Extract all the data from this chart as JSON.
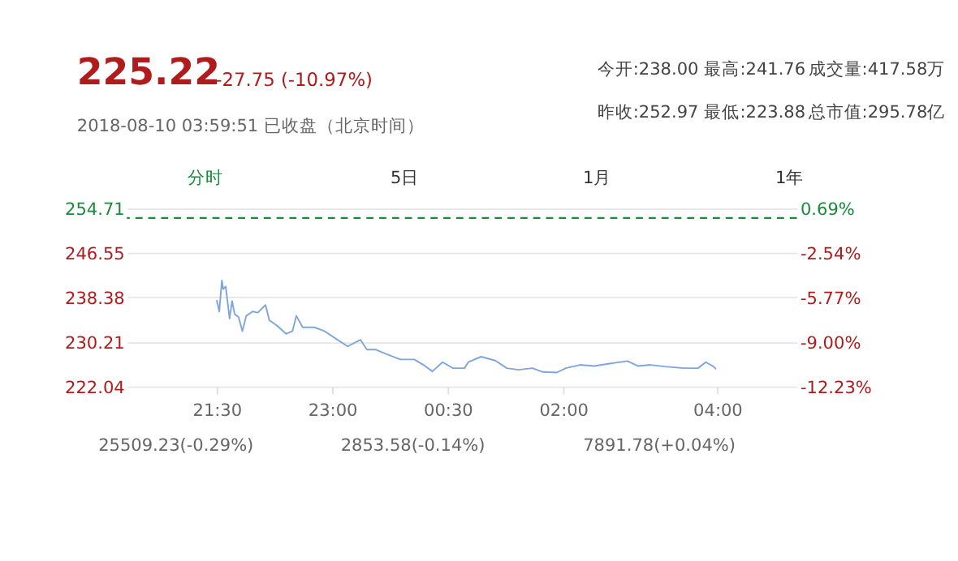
{
  "chart_data": {
    "type": "line",
    "title": "225.22",
    "subtitle": "-27.75 (-10.97%)",
    "annotations": [
      "2018-08-10 03:59:51 已收盘（北京时间）",
      "今开:238.00",
      "最高:241.76",
      "成交量:417.58万",
      "昨收:252.97",
      "最低:223.88",
      "总市值:295.78亿",
      "分时",
      "5日",
      "1月",
      "1年",
      "25509.23(-0.29%)",
      "2853.58(-0.14%)",
      "7891.78(+0.04%)"
    ],
    "x": [
      "2018-08-09T21:30",
      "2018-08-09T21:32",
      "2018-08-09T21:34",
      "2018-08-09T21:35",
      "2018-08-09T21:37",
      "2018-08-09T21:40",
      "2018-08-09T21:42",
      "2018-08-09T21:44",
      "2018-08-09T21:47",
      "2018-08-09T21:50",
      "2018-08-09T21:53",
      "2018-08-09T21:58",
      "2018-08-09T22:02",
      "2018-08-09T22:08",
      "2018-08-09T22:11",
      "2018-08-09T22:17",
      "2018-08-09T22:24",
      "2018-08-09T22:29",
      "2018-08-09T22:32",
      "2018-08-09T22:37",
      "2018-08-09T22:46",
      "2018-08-09T22:54",
      "2018-08-09T23:01",
      "2018-08-09T23:12",
      "2018-08-09T23:22",
      "2018-08-09T23:27",
      "2018-08-09T23:34",
      "2018-08-09T23:42",
      "2018-08-09T23:53",
      "2018-08-10T00:04",
      "2018-08-10T00:11",
      "2018-08-10T00:18",
      "2018-08-10T00:26",
      "2018-08-10T00:34",
      "2018-08-10T00:43",
      "2018-08-10T00:46",
      "2018-08-10T00:56",
      "2018-08-10T01:07",
      "2018-08-10T01:16",
      "2018-08-10T01:25",
      "2018-08-10T01:36",
      "2018-08-10T01:44",
      "2018-08-10T01:55",
      "2018-08-10T02:02",
      "2018-08-10T02:13",
      "2018-08-10T02:24",
      "2018-08-10T02:35",
      "2018-08-10T02:50",
      "2018-08-10T02:58",
      "2018-08-10T03:08",
      "2018-08-10T03:19",
      "2018-08-10T03:34",
      "2018-08-10T03:45",
      "2018-08-10T03:51",
      "2018-08-10T03:57",
      "2018-08-10T03:59"
    ],
    "series": [
      {
        "color": "#7fa6dc",
        "values": [
          237.9,
          235.8,
          241.5,
          239.9,
          240.4,
          234.5,
          237.7,
          235.3,
          234.8,
          232.2,
          235.0,
          235.8,
          235.6,
          237.0,
          234.2,
          233.2,
          231.7,
          232.2,
          235.0,
          232.9,
          232.9,
          232.2,
          231.1,
          229.4,
          230.6,
          228.8,
          228.8,
          228.0,
          227.0,
          227.0,
          226.0,
          224.8,
          226.5,
          225.4,
          225.4,
          226.5,
          227.5,
          226.8,
          225.4,
          225.1,
          225.4,
          224.7,
          224.6,
          225.4,
          226.0,
          225.8,
          226.2,
          226.7,
          225.8,
          226.0,
          225.7,
          225.4,
          225.4,
          226.5,
          225.7,
          225.2
        ]
      }
    ],
    "xlim": [
      "2018-08-09T20:20",
      "2018-08-10T05:02"
    ],
    "xticks": [
      {
        "value": "2018-08-09T21:30",
        "label": "21:30"
      },
      {
        "value": "2018-08-09T23:00",
        "label": "23:00"
      },
      {
        "value": "2018-08-10T00:30",
        "label": "00:30"
      },
      {
        "value": "2018-08-10T02:00",
        "label": "02:00"
      },
      {
        "value": "2018-08-10T04:00",
        "label": "04:00"
      }
    ],
    "ylim": [
      222.04,
      254.71
    ],
    "yticks": [
      222.04,
      230.21,
      238.38,
      246.55,
      254.71
    ],
    "y2lim": [
      -12.23,
      0.69
    ],
    "y2ticks": [
      {
        "value": -12.23,
        "label": "-12.23%"
      },
      {
        "value": -9.0,
        "label": "-9.00%"
      },
      {
        "value": -5.77,
        "label": "-5.77%"
      },
      {
        "value": -2.54,
        "label": "-2.54%"
      },
      {
        "value": 0.69,
        "label": "0.69%"
      }
    ],
    "ref_lines": [
      {
        "axis": "y",
        "value": 252.97,
        "color": "#1a8a3c",
        "line_style": "dashed"
      }
    ],
    "grid": "y"
  }
}
